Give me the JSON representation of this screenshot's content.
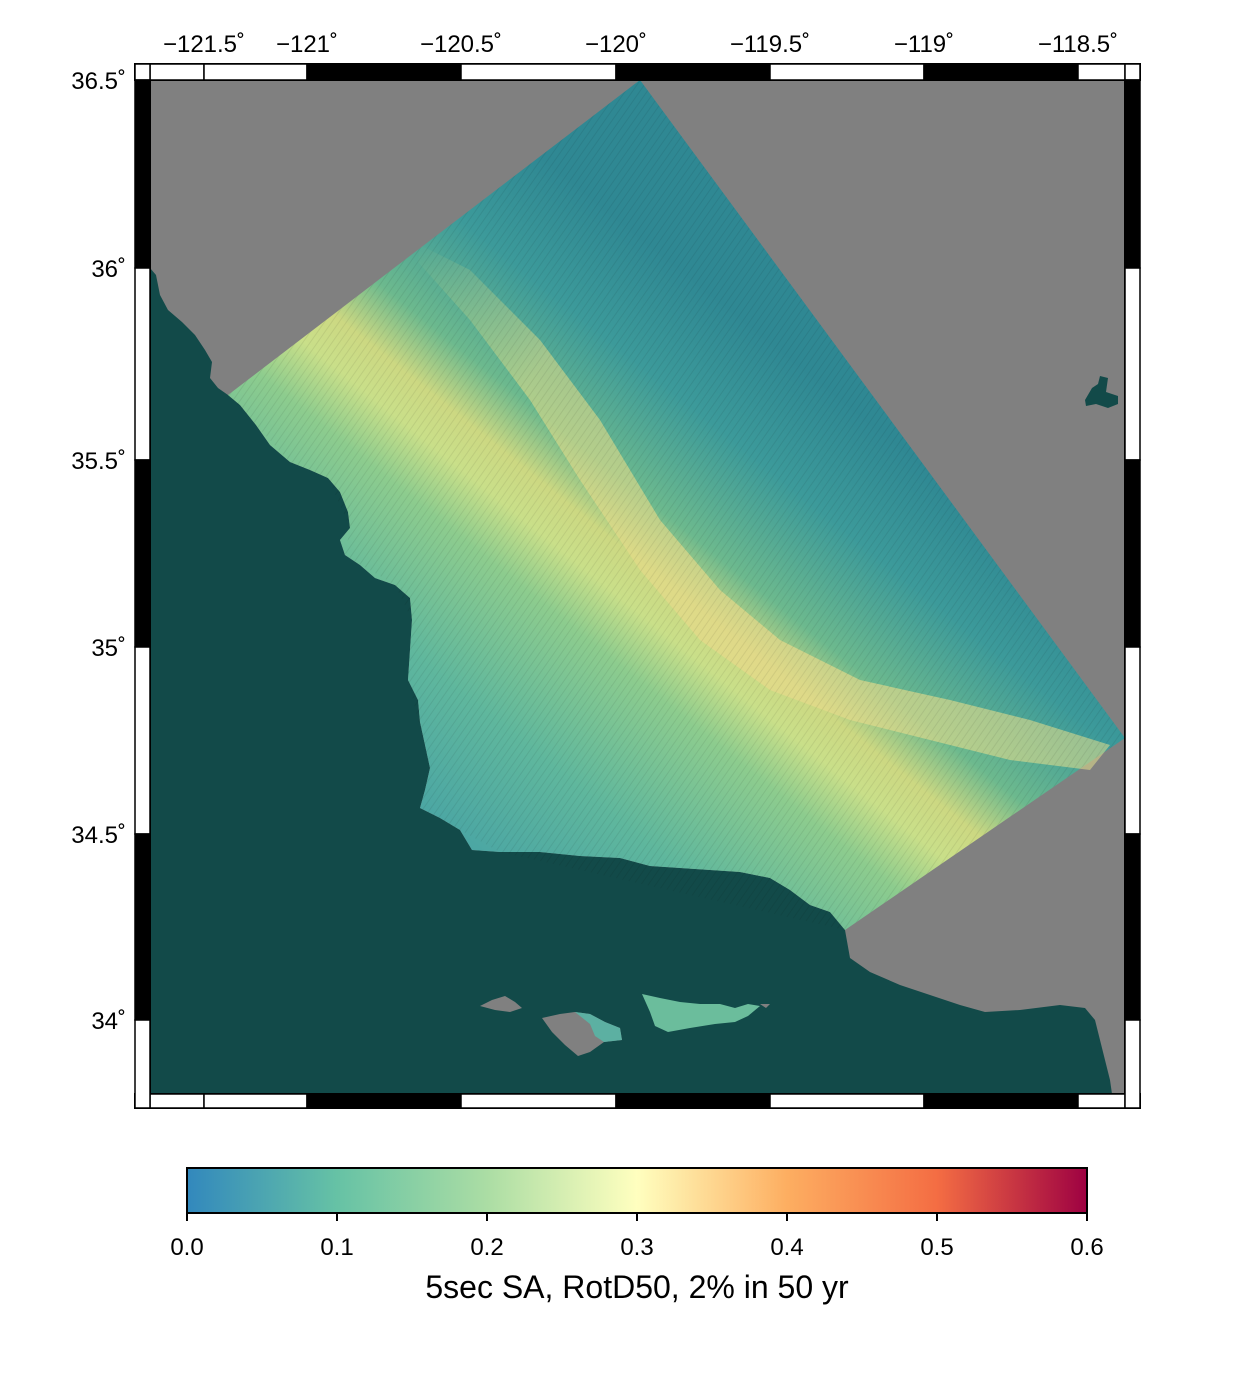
{
  "map": {
    "colors": {
      "ocean": "#124a49",
      "land_outside": "#808080",
      "frame_dark": "#000000",
      "frame_light": "#ffffff"
    },
    "lon_labels": [
      "−121.5˚",
      "−121˚",
      "−120.5˚",
      "−120˚",
      "−119.5˚",
      "−119˚",
      "−118.5˚"
    ],
    "lat_labels": [
      "36.5˚",
      "36˚",
      "35.5˚",
      "35˚",
      "34.5˚",
      "34˚"
    ]
  },
  "colorbar": {
    "title": "5sec SA, RotD50, 2% in 50 yr",
    "ticks": [
      "0.0",
      "0.1",
      "0.2",
      "0.3",
      "0.4",
      "0.5",
      "0.6"
    ],
    "range": [
      0.0,
      0.6
    ],
    "stops": [
      "#3288bd",
      "#66c2a5",
      "#abdda4",
      "#ffffbf",
      "#fdae61",
      "#f46d43",
      "#9e0142"
    ]
  }
}
